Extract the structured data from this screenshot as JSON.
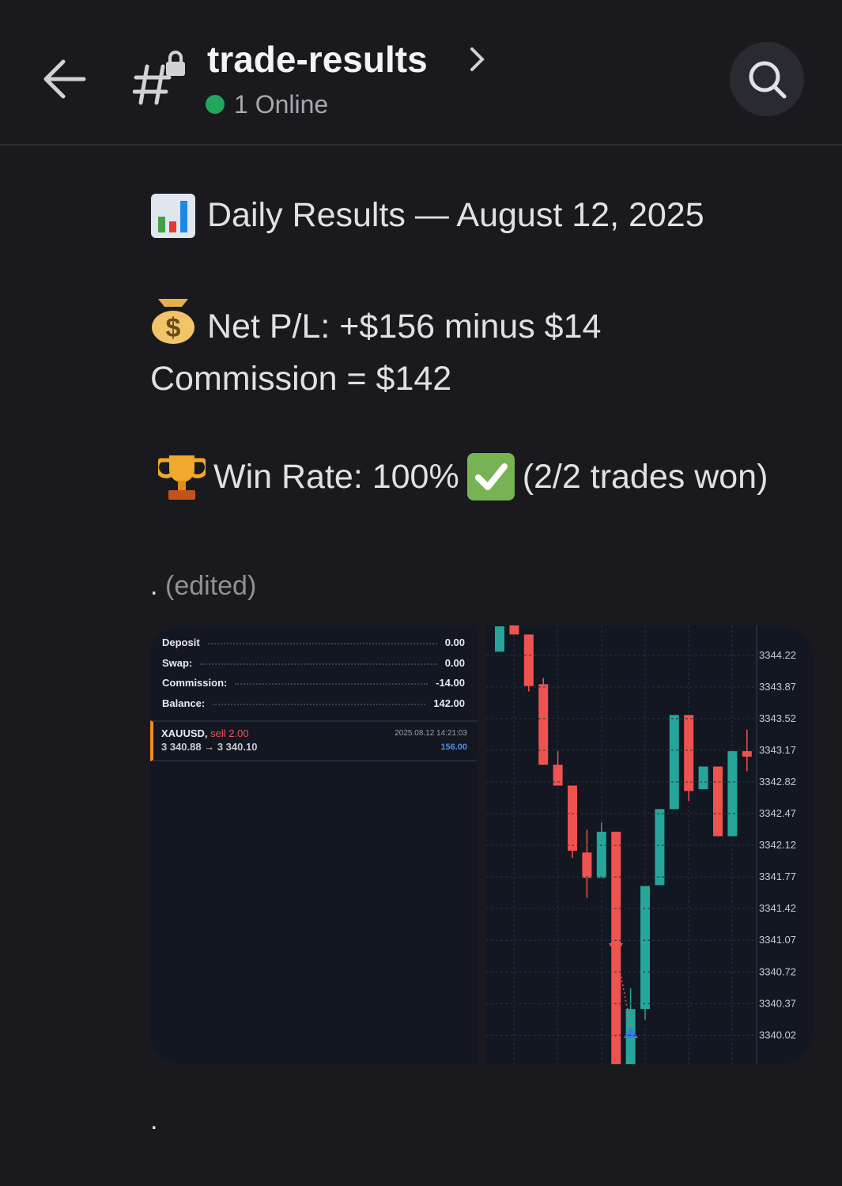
{
  "header": {
    "channel": "trade-results",
    "status": "1 Online"
  },
  "message": {
    "title": "Daily Results — August 12, 2025",
    "net_pl": "Net P/L: +$156 minus $14 Commission = $142",
    "win_rate": "Win Rate: 100%",
    "trades": "(2/2 trades won)",
    "dot": ".",
    "edited": "(edited)",
    "trailing": "."
  },
  "account": {
    "rows": [
      [
        "Deposit",
        "0.00"
      ],
      [
        "Swap:",
        "0.00"
      ],
      [
        "Commission:",
        "-14.00"
      ],
      [
        "Balance:",
        "142.00"
      ]
    ],
    "trade": {
      "symbol": "XAUUSD,",
      "side": "sell 2.00",
      "prices": "3 340.88 → 3 340.10",
      "time": "2025.08.12 14:21:03",
      "profit": "156.00"
    }
  },
  "chart_data": {
    "type": "candlestick",
    "ylim": [
      3339.7,
      3344.55
    ],
    "yticks": [
      3344.22,
      3343.87,
      3343.52,
      3343.17,
      3342.82,
      3342.47,
      3342.12,
      3341.77,
      3341.42,
      3341.07,
      3340.72,
      3340.37,
      3340.02
    ],
    "grid": true,
    "up_color": "#26a69a",
    "down_color": "#ef5350",
    "open": [
      3344.26,
      3344.55,
      3344.45,
      3343.9,
      3343.01,
      3342.78,
      3342.04,
      3341.76,
      3342.27,
      3339.7,
      3340.31,
      3341.68,
      3342.52,
      3343.56,
      3342.74,
      3342.99,
      3342.22,
      3343.16
    ],
    "high": [
      3344.54,
      3344.55,
      3344.45,
      3343.97,
      3343.16,
      3342.78,
      3342.29,
      3342.37,
      3342.27,
      3340.54,
      3341.67,
      3342.52,
      3343.56,
      3343.56,
      3342.99,
      3342.99,
      3343.16,
      3343.4
    ],
    "low": [
      3344.26,
      3344.45,
      3343.82,
      3343.01,
      3342.78,
      3341.98,
      3341.54,
      3341.76,
      3339.7,
      3339.7,
      3340.19,
      3341.68,
      3342.52,
      3342.61,
      3342.74,
      3342.22,
      3342.22,
      3342.94
    ],
    "close": [
      3344.54,
      3344.45,
      3343.88,
      3343.01,
      3342.78,
      3342.06,
      3341.76,
      3342.27,
      3339.7,
      3340.31,
      3341.67,
      3342.52,
      3343.56,
      3342.72,
      3342.99,
      3342.22,
      3343.16,
      3343.1
    ]
  }
}
